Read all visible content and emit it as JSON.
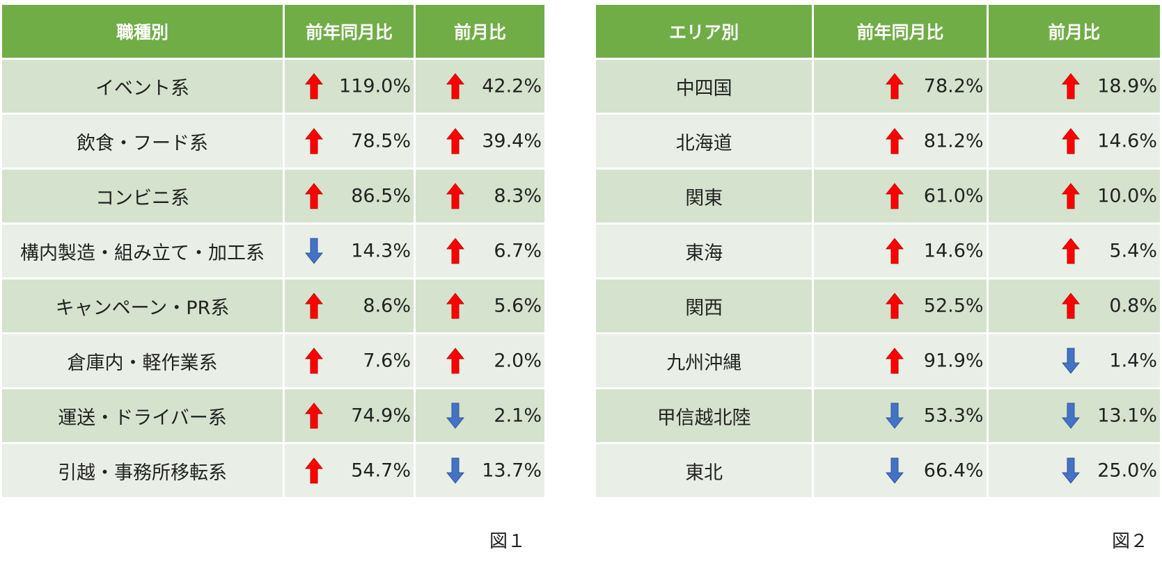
{
  "colors": {
    "header": "#70ad47",
    "row_dark": "#d5e2cd",
    "row_light": "#e9efe6",
    "up_arrow": "#ff0000",
    "down_arrow": "#4472c4"
  },
  "table1": {
    "headers": [
      "職種別",
      "前年同月比",
      "前月比"
    ],
    "rows": [
      {
        "label": "イベント系",
        "yoy_dir": "up",
        "yoy": "119.0%",
        "mom_dir": "up",
        "mom": "42.2%"
      },
      {
        "label": "飲食・フード系",
        "yoy_dir": "up",
        "yoy": "78.5%",
        "mom_dir": "up",
        "mom": "39.4%"
      },
      {
        "label": "コンビニ系",
        "yoy_dir": "up",
        "yoy": "86.5%",
        "mom_dir": "up",
        "mom": "8.3%"
      },
      {
        "label": "構内製造・組み立て・加工系",
        "yoy_dir": "down",
        "yoy": "14.3%",
        "mom_dir": "up",
        "mom": "6.7%"
      },
      {
        "label": "キャンペーン・PR系",
        "yoy_dir": "up",
        "yoy": "8.6%",
        "mom_dir": "up",
        "mom": "5.6%"
      },
      {
        "label": "倉庫内・軽作業系",
        "yoy_dir": "up",
        "yoy": "7.6%",
        "mom_dir": "up",
        "mom": "2.0%"
      },
      {
        "label": "運送・ドライバー系",
        "yoy_dir": "up",
        "yoy": "74.9%",
        "mom_dir": "down",
        "mom": "2.1%"
      },
      {
        "label": "引越・事務所移転系",
        "yoy_dir": "up",
        "yoy": "54.7%",
        "mom_dir": "down",
        "mom": "13.7%"
      }
    ],
    "caption": "図１"
  },
  "table2": {
    "headers": [
      "エリア別",
      "前年同月比",
      "前月比"
    ],
    "rows": [
      {
        "label": "中四国",
        "yoy_dir": "up",
        "yoy": "78.2%",
        "mom_dir": "up",
        "mom": "18.9%"
      },
      {
        "label": "北海道",
        "yoy_dir": "up",
        "yoy": "81.2%",
        "mom_dir": "up",
        "mom": "14.6%"
      },
      {
        "label": "関東",
        "yoy_dir": "up",
        "yoy": "61.0%",
        "mom_dir": "up",
        "mom": "10.0%"
      },
      {
        "label": "東海",
        "yoy_dir": "up",
        "yoy": "14.6%",
        "mom_dir": "up",
        "mom": "5.4%"
      },
      {
        "label": "関西",
        "yoy_dir": "up",
        "yoy": "52.5%",
        "mom_dir": "up",
        "mom": "0.8%"
      },
      {
        "label": "九州沖縄",
        "yoy_dir": "up",
        "yoy": "91.9%",
        "mom_dir": "down",
        "mom": "1.4%"
      },
      {
        "label": "甲信越北陸",
        "yoy_dir": "down",
        "yoy": "53.3%",
        "mom_dir": "down",
        "mom": "13.1%"
      },
      {
        "label": "東北",
        "yoy_dir": "down",
        "yoy": "66.4%",
        "mom_dir": "down",
        "mom": "25.0%"
      }
    ],
    "caption": "図２"
  }
}
